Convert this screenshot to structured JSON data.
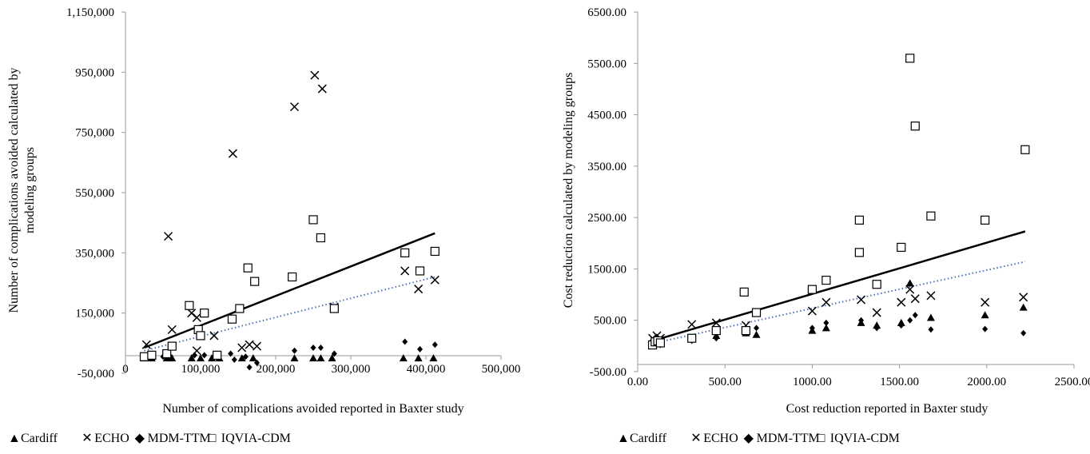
{
  "chart_data": [
    {
      "type": "scatter",
      "xlabel": "Number of complications avoided reported in Baxter study",
      "ylabel": "Number of complications avoided calculated by modeling groups",
      "xlim": [
        0,
        500000
      ],
      "ylim": [
        -50000,
        1150000
      ],
      "xticks": [
        "0",
        "100,000",
        "200,000",
        "300,000",
        "400,000",
        "500,000"
      ],
      "yticks": [
        "1,150,000",
        "950,000",
        "750,000",
        "550,000",
        "350,000",
        "150,000",
        "-50,000"
      ],
      "series": [
        {
          "name": "Cardiff",
          "marker": "triangle",
          "points": [
            [
              25000,
              0
            ],
            [
              35000,
              0
            ],
            [
              55000,
              0
            ],
            [
              62000,
              0
            ],
            [
              88000,
              0
            ],
            [
              100000,
              0
            ],
            [
              115000,
              0
            ],
            [
              125000,
              0
            ],
            [
              155000,
              0
            ],
            [
              170000,
              0
            ],
            [
              225000,
              0
            ],
            [
              250000,
              0
            ],
            [
              260000,
              0
            ],
            [
              275000,
              0
            ],
            [
              370000,
              0
            ],
            [
              390000,
              0
            ],
            [
              410000,
              0
            ]
          ]
        },
        {
          "name": "ECHO",
          "marker": "x",
          "points": [
            [
              28000,
              45000
            ],
            [
              57000,
              405000
            ],
            [
              62000,
              95000
            ],
            [
              88000,
              150000
            ],
            [
              95000,
              135000
            ],
            [
              105000,
              150000
            ],
            [
              118000,
              75000
            ],
            [
              143000,
              680000
            ],
            [
              155000,
              35000
            ],
            [
              165000,
              45000
            ],
            [
              175000,
              40000
            ],
            [
              225000,
              835000
            ],
            [
              252000,
              940000
            ],
            [
              262000,
              895000
            ],
            [
              278000,
              170000
            ],
            [
              372000,
              290000
            ],
            [
              390000,
              230000
            ],
            [
              412000,
              260000
            ],
            [
              95000,
              25000
            ]
          ]
        },
        {
          "name": "MDM-TTM",
          "marker": "diamond",
          "points": [
            [
              30000,
              5000
            ],
            [
              50000,
              5000
            ],
            [
              60000,
              5000
            ],
            [
              92000,
              10000
            ],
            [
              105000,
              10000
            ],
            [
              140000,
              15000
            ],
            [
              145000,
              -5000
            ],
            [
              160000,
              5000
            ],
            [
              165000,
              -30000
            ],
            [
              175000,
              -15000
            ],
            [
              225000,
              25000
            ],
            [
              250000,
              35000
            ],
            [
              260000,
              35000
            ],
            [
              278000,
              15000
            ],
            [
              372000,
              55000
            ],
            [
              392000,
              30000
            ],
            [
              412000,
              45000
            ]
          ]
        },
        {
          "name": "IQVIA-CDM",
          "marker": "square",
          "points": [
            [
              25000,
              5000
            ],
            [
              35000,
              10000
            ],
            [
              55000,
              15000
            ],
            [
              62000,
              40000
            ],
            [
              85000,
              175000
            ],
            [
              97000,
              95000
            ],
            [
              100000,
              75000
            ],
            [
              105000,
              150000
            ],
            [
              122000,
              10000
            ],
            [
              142000,
              130000
            ],
            [
              152000,
              165000
            ],
            [
              163000,
              300000
            ],
            [
              172000,
              255000
            ],
            [
              222000,
              270000
            ],
            [
              250000,
              460000
            ],
            [
              260000,
              400000
            ],
            [
              278000,
              165000
            ],
            [
              372000,
              350000
            ],
            [
              392000,
              290000
            ],
            [
              412000,
              355000
            ]
          ]
        }
      ],
      "trendlines": [
        {
          "style": "solid",
          "from": [
            25000,
            35000
          ],
          "to": [
            412000,
            415000
          ]
        },
        {
          "style": "dotted",
          "from": [
            25000,
            25000
          ],
          "to": [
            412000,
            270000
          ]
        }
      ]
    },
    {
      "type": "scatter",
      "xlabel": "Cost reduction reported in Baxter study",
      "ylabel": "Cost reduction calculated by modeling groups",
      "xlim": [
        0,
        2500
      ],
      "ylim": [
        -500,
        6500
      ],
      "xticks": [
        "0.00",
        "500.00",
        "1000.00",
        "1500.00",
        "2000.00",
        "2500.00"
      ],
      "yticks": [
        "6500.00",
        "5500.00",
        "4500.00",
        "3500.00",
        "2500.00",
        "1500.00",
        "500.00",
        "-500.00"
      ],
      "series": [
        {
          "name": "Cardiff",
          "marker": "triangle",
          "points": [
            [
              85,
              50
            ],
            [
              110,
              100
            ],
            [
              130,
              80
            ],
            [
              310,
              150
            ],
            [
              450,
              200
            ],
            [
              620,
              250
            ],
            [
              680,
              220
            ],
            [
              1000,
              300
            ],
            [
              1080,
              350
            ],
            [
              1280,
              450
            ],
            [
              1370,
              400
            ],
            [
              1510,
              450
            ],
            [
              1560,
              1220
            ],
            [
              1680,
              550
            ],
            [
              1990,
              600
            ],
            [
              2210,
              750
            ]
          ]
        },
        {
          "name": "ECHO",
          "marker": "x",
          "points": [
            [
              85,
              150
            ],
            [
              110,
              200
            ],
            [
              130,
              150
            ],
            [
              310,
              420
            ],
            [
              450,
              450
            ],
            [
              620,
              400
            ],
            [
              680,
              650
            ],
            [
              1000,
              680
            ],
            [
              1080,
              850
            ],
            [
              1280,
              900
            ],
            [
              1370,
              650
            ],
            [
              1510,
              850
            ],
            [
              1560,
              1100
            ],
            [
              1590,
              920
            ],
            [
              1680,
              980
            ],
            [
              1990,
              850
            ],
            [
              2210,
              950
            ]
          ]
        },
        {
          "name": "MDM-TTM",
          "marker": "diamond",
          "points": [
            [
              85,
              30
            ],
            [
              110,
              60
            ],
            [
              130,
              20
            ],
            [
              310,
              100
            ],
            [
              450,
              150
            ],
            [
              620,
              350
            ],
            [
              680,
              350
            ],
            [
              1000,
              350
            ],
            [
              1080,
              450
            ],
            [
              1280,
              500
            ],
            [
              1370,
              350
            ],
            [
              1510,
              400
            ],
            [
              1560,
              500
            ],
            [
              1590,
              600
            ],
            [
              1680,
              320
            ],
            [
              1990,
              330
            ],
            [
              2210,
              250
            ]
          ]
        },
        {
          "name": "IQVIA-CDM",
          "marker": "square",
          "points": [
            [
              85,
              20
            ],
            [
              100,
              80
            ],
            [
              115,
              100
            ],
            [
              130,
              60
            ],
            [
              310,
              150
            ],
            [
              450,
              300
            ],
            [
              610,
              1050
            ],
            [
              620,
              300
            ],
            [
              680,
              650
            ],
            [
              1000,
              1100
            ],
            [
              1080,
              1280
            ],
            [
              1270,
              2450
            ],
            [
              1270,
              1820
            ],
            [
              1370,
              1200
            ],
            [
              1510,
              1920
            ],
            [
              1560,
              5600
            ],
            [
              1590,
              4280
            ],
            [
              1680,
              2530
            ],
            [
              1990,
              2450
            ],
            [
              2220,
              3820
            ]
          ]
        }
      ],
      "trendlines": [
        {
          "style": "solid",
          "from": [
            85,
            100
          ],
          "to": [
            2220,
            2230
          ]
        },
        {
          "style": "dotted",
          "from": [
            85,
            50
          ],
          "to": [
            2220,
            1640
          ]
        }
      ]
    }
  ],
  "legend": {
    "items": [
      {
        "label": "Cardiff",
        "symbol": "▲"
      },
      {
        "label": "ECHO",
        "symbol": "✕"
      },
      {
        "label": "MDM-TTM",
        "symbol": "◆"
      },
      {
        "label": "IQVIA-CDM",
        "symbol": "□"
      }
    ]
  },
  "colors": {
    "markers": "#000000",
    "trend_solid": "#000000",
    "trend_dotted": "#4f6fb5"
  }
}
